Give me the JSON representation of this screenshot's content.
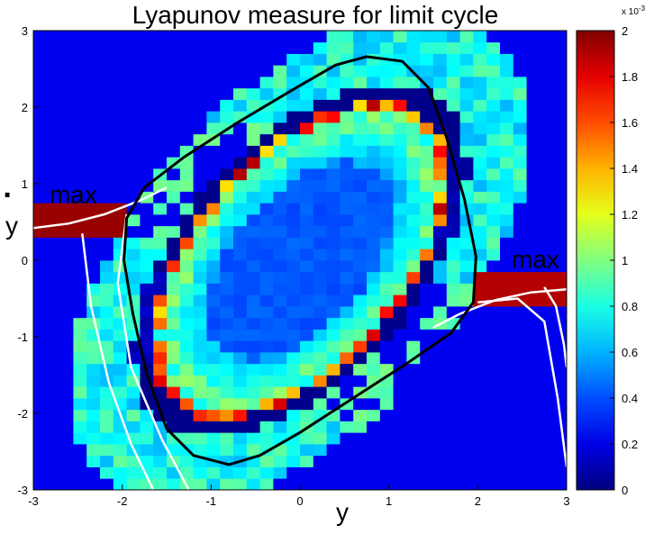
{
  "chart_data": {
    "type": "heatmap",
    "title": "Lyapunov measure for limit cycle",
    "xlabel": "y",
    "ylabel": "y",
    "ylabel_dot": "·",
    "xlim": [
      -3,
      3
    ],
    "ylim": [
      -3,
      3
    ],
    "x_ticks": [
      -3,
      -2,
      -1,
      0,
      1,
      2,
      3
    ],
    "y_ticks": [
      -3,
      -2,
      -1,
      0,
      1,
      2,
      3
    ],
    "grid": 40,
    "colorbar": {
      "min": 0,
      "max": 2,
      "ticks": [
        "0",
        "0.2",
        "0.4",
        "0.6",
        "0.8",
        "1",
        "1.2",
        "1.4",
        "1.6",
        "1.8",
        "2"
      ],
      "exponent_label": "x 10",
      "exponent": "-3",
      "colormap": "jet"
    },
    "annotations": [
      {
        "text": "max",
        "x": -2.55,
        "y": 0.75
      },
      {
        "text": "max",
        "x": 2.65,
        "y": -0.1
      }
    ],
    "limit_cycle": {
      "color": "#000000",
      "points": [
        [
          -1.95,
          0.55
        ],
        [
          -1.75,
          0.95
        ],
        [
          -1.3,
          1.35
        ],
        [
          -0.7,
          1.8
        ],
        [
          -0.05,
          2.25
        ],
        [
          0.4,
          2.55
        ],
        [
          0.75,
          2.66
        ],
        [
          1.15,
          2.6
        ],
        [
          1.45,
          2.25
        ],
        [
          1.65,
          1.6
        ],
        [
          1.85,
          0.8
        ],
        [
          1.98,
          0.05
        ],
        [
          1.95,
          -0.55
        ],
        [
          1.7,
          -0.95
        ],
        [
          1.2,
          -1.35
        ],
        [
          0.6,
          -1.8
        ],
        [
          0.0,
          -2.25
        ],
        [
          -0.45,
          -2.55
        ],
        [
          -0.8,
          -2.67
        ],
        [
          -1.2,
          -2.55
        ],
        [
          -1.5,
          -2.2
        ],
        [
          -1.72,
          -1.5
        ],
        [
          -1.88,
          -0.7
        ],
        [
          -1.98,
          0.0
        ],
        [
          -1.95,
          0.55
        ]
      ]
    },
    "trajectories": [
      {
        "color": "#ffffff",
        "points": [
          [
            -3.0,
            0.42
          ],
          [
            -2.6,
            0.48
          ],
          [
            -2.2,
            0.6
          ],
          [
            -1.8,
            0.78
          ],
          [
            -1.5,
            0.95
          ]
        ]
      },
      {
        "color": "#ffffff",
        "points": [
          [
            -2.45,
            0.35
          ],
          [
            -2.35,
            -0.6
          ],
          [
            -2.15,
            -1.6
          ],
          [
            -1.9,
            -2.4
          ],
          [
            -1.65,
            -3.0
          ]
        ]
      },
      {
        "color": "#ffffff",
        "points": [
          [
            -1.95,
            0.6
          ],
          [
            -2.05,
            -0.3
          ],
          [
            -1.9,
            -1.4
          ],
          [
            -1.55,
            -2.35
          ],
          [
            -1.25,
            -3.0
          ]
        ]
      },
      {
        "color": "#ffffff",
        "points": [
          [
            3.0,
            -0.38
          ],
          [
            2.6,
            -0.42
          ],
          [
            2.2,
            -0.52
          ],
          [
            1.8,
            -0.7
          ],
          [
            1.5,
            -0.88
          ]
        ]
      },
      {
        "color": "#ffffff",
        "points": [
          [
            2.0,
            -0.55
          ],
          [
            2.45,
            -0.5
          ],
          [
            2.75,
            -0.8
          ],
          [
            2.9,
            -1.8
          ],
          [
            3.0,
            -2.7
          ]
        ]
      },
      {
        "color": "#ffffff",
        "points": [
          [
            2.75,
            -0.35
          ],
          [
            2.88,
            -0.6
          ],
          [
            2.97,
            -1.1
          ],
          [
            3.0,
            -1.4
          ]
        ]
      }
    ]
  }
}
